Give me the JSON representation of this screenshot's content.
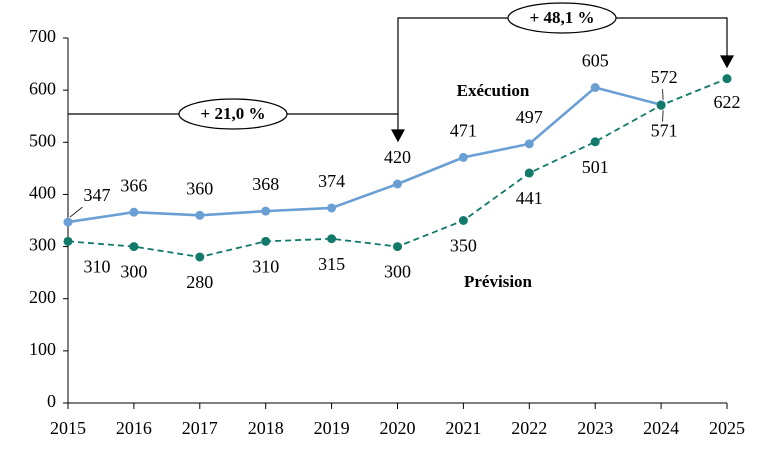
{
  "chart_data": {
    "type": "line",
    "categories": [
      "2015",
      "2016",
      "2017",
      "2018",
      "2019",
      "2020",
      "2021",
      "2022",
      "2023",
      "2024",
      "2025"
    ],
    "series": [
      {
        "name": "Exécution",
        "color": "#6a9fd4",
        "dashed": false,
        "values": [
          347,
          366,
          360,
          368,
          374,
          420,
          471,
          497,
          605,
          572,
          null
        ]
      },
      {
        "name": "Prévision",
        "color": "#117a6a",
        "dashed": true,
        "values": [
          310,
          300,
          280,
          310,
          315,
          300,
          350,
          441,
          501,
          571,
          622
        ]
      }
    ],
    "ylim": [
      0,
      700
    ],
    "yticks": [
      0,
      100,
      200,
      300,
      400,
      500,
      600,
      700
    ],
    "annotations": [
      "+ 21,0 %",
      "+ 48,1 %"
    ]
  }
}
